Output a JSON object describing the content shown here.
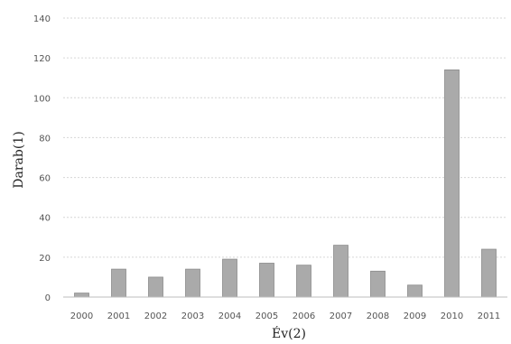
{
  "chart_data": {
    "type": "bar",
    "xlabel": "Év(2)",
    "ylabel": "Darab(1)",
    "categories": [
      "2000",
      "2001",
      "2002",
      "2003",
      "2004",
      "2005",
      "2006",
      "2007",
      "2008",
      "2009",
      "2010",
      "2011"
    ],
    "values": [
      2,
      14,
      10,
      14,
      19,
      17,
      16,
      26,
      13,
      6,
      114,
      24
    ],
    "yticks": [
      "0",
      "20",
      "40",
      "60",
      "80",
      "100",
      "120",
      "140"
    ],
    "ylim": [
      0,
      140
    ],
    "grid": true,
    "legend": "none",
    "colors": {
      "bar": "#aaaaaa",
      "bar_edge": "#8c8c8c",
      "grid": "#d6d6d6",
      "axis": "#bdbdbd"
    }
  }
}
